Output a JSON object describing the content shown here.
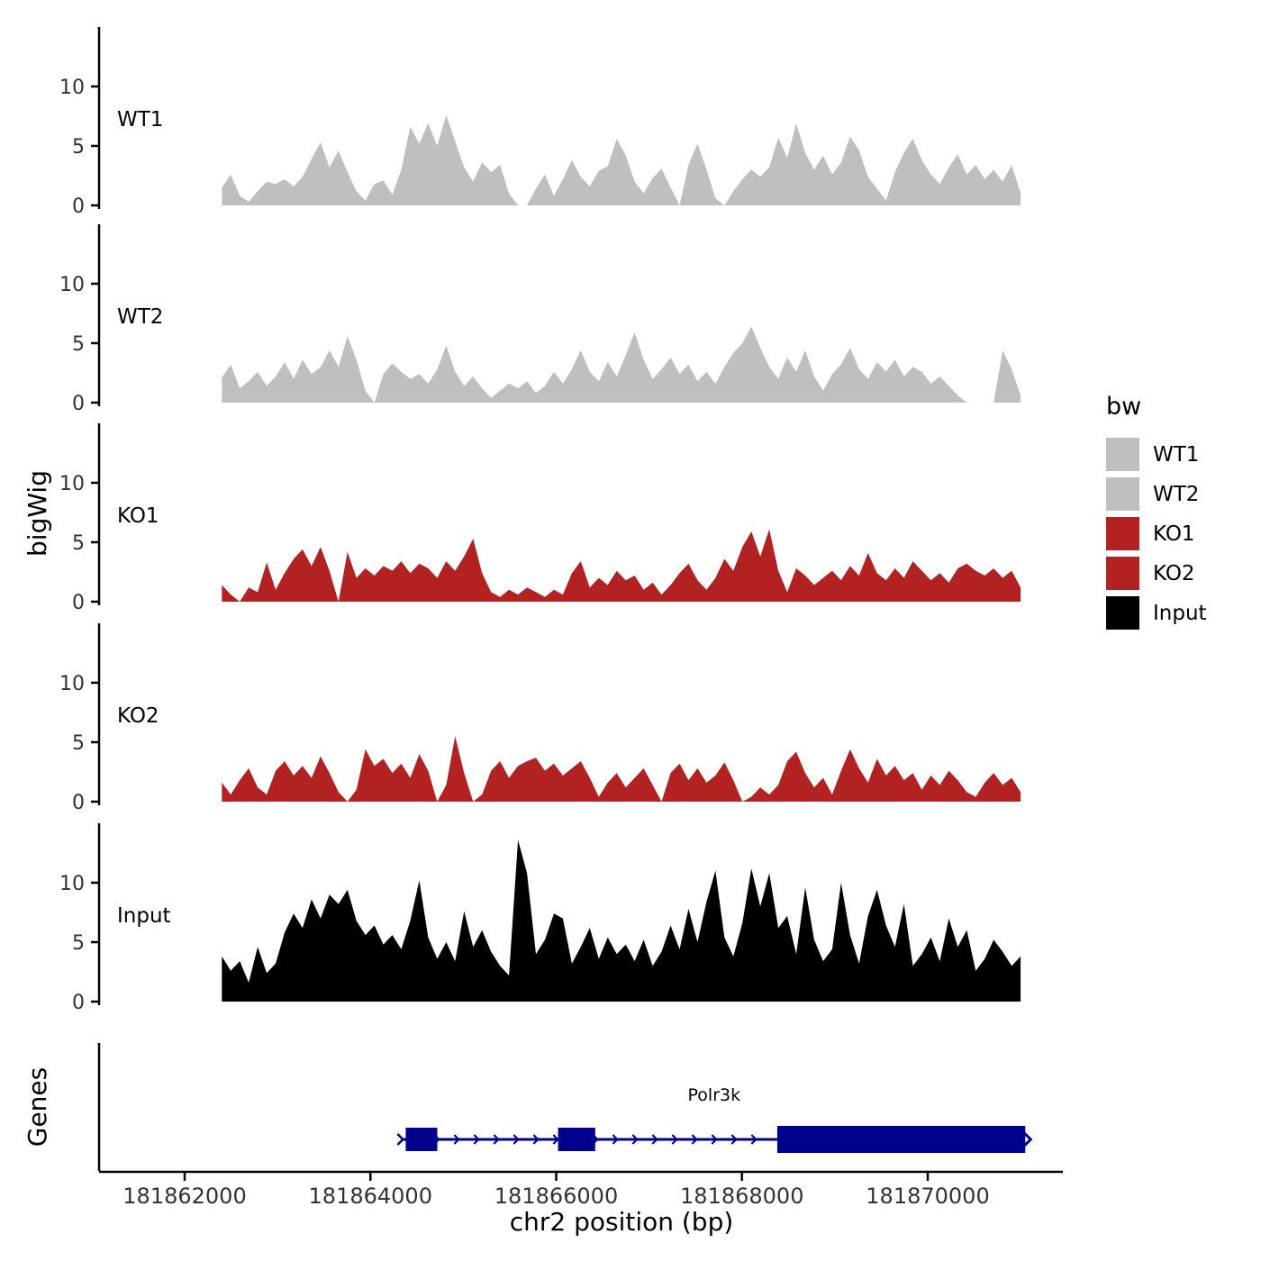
{
  "chart_data": {
    "type": "area",
    "title": "",
    "xlabel": "chr2 position (bp)",
    "ylabel": "bigWig",
    "grid": false,
    "y_ticks": [
      0,
      5,
      10
    ],
    "y_axis_range": [
      0,
      13.8
    ],
    "x_axis_ticks": [
      181862000,
      181864000,
      181866000,
      181868000,
      181870000
    ],
    "x_tick_labels": [
      "181862000",
      "181864000",
      "181866000",
      "181868000",
      "181870000"
    ],
    "x_range_bp": [
      181862400,
      181871000
    ],
    "facets": [
      {
        "name": "WT1",
        "color": "#BFBFBF",
        "values": [
          1.5,
          2.6,
          0.8,
          0.3,
          1.2,
          2.0,
          1.8,
          2.2,
          1.6,
          2.4,
          3.9,
          5.3,
          3.2,
          4.6,
          2.8,
          1.2,
          0.4,
          1.8,
          2.1,
          0.9,
          3.0,
          6.6,
          5.2,
          6.9,
          5.0,
          7.6,
          5.4,
          3.2,
          2.0,
          3.6,
          2.8,
          3.4,
          1.0,
          0.0,
          0.0,
          1.4,
          2.6,
          0.8,
          2.2,
          3.8,
          2.4,
          1.6,
          2.9,
          3.3,
          5.6,
          4.2,
          2.0,
          1.0,
          2.3,
          3.1,
          1.5,
          0.0,
          3.4,
          5.2,
          3.0,
          0.6,
          0.0,
          1.2,
          2.2,
          3.0,
          2.4,
          3.2,
          5.7,
          4.0,
          6.9,
          4.4,
          3.0,
          4.2,
          2.6,
          3.6,
          5.8,
          4.6,
          2.4,
          1.4,
          0.4,
          2.8,
          4.4,
          5.6,
          3.8,
          2.6,
          1.8,
          3.2,
          4.3,
          2.6,
          3.4,
          2.2,
          3.0,
          2.0,
          3.4,
          1.0
        ]
      },
      {
        "name": "WT2",
        "color": "#BFBFBF",
        "values": [
          2.1,
          3.2,
          1.2,
          1.8,
          2.6,
          1.4,
          2.2,
          3.4,
          2.0,
          3.6,
          2.4,
          3.0,
          4.4,
          3.0,
          5.6,
          3.6,
          1.0,
          0.0,
          2.4,
          3.3,
          2.6,
          2.0,
          2.4,
          1.6,
          2.8,
          4.8,
          2.6,
          1.4,
          2.2,
          1.2,
          0.4,
          1.0,
          1.6,
          1.2,
          1.8,
          0.8,
          1.4,
          2.6,
          1.6,
          2.8,
          4.4,
          2.6,
          1.8,
          3.4,
          2.2,
          4.0,
          5.9,
          3.6,
          2.0,
          2.8,
          3.8,
          2.4,
          3.2,
          1.8,
          2.6,
          1.6,
          3.0,
          4.2,
          5.0,
          6.4,
          4.6,
          3.0,
          2.0,
          3.8,
          2.6,
          4.4,
          2.2,
          1.0,
          2.4,
          3.2,
          4.6,
          2.8,
          2.0,
          3.4,
          2.6,
          3.6,
          2.2,
          3.0,
          2.6,
          1.6,
          2.2,
          1.4,
          0.6,
          0.0,
          0.0,
          0.0,
          0.0,
          4.4,
          2.8,
          0.6
        ]
      },
      {
        "name": "KO1",
        "color": "#B22222",
        "values": [
          1.4,
          0.6,
          0.0,
          1.2,
          0.8,
          3.3,
          1.0,
          2.4,
          3.6,
          4.4,
          3.0,
          4.6,
          2.6,
          0.0,
          4.2,
          2.0,
          2.8,
          2.2,
          3.0,
          2.6,
          3.4,
          2.4,
          3.2,
          2.8,
          2.0,
          3.4,
          2.6,
          3.8,
          5.3,
          2.4,
          0.8,
          0.4,
          1.0,
          0.6,
          1.2,
          0.8,
          0.4,
          1.0,
          0.6,
          2.4,
          3.4,
          1.2,
          2.0,
          1.4,
          2.6,
          1.8,
          2.2,
          1.0,
          1.6,
          0.6,
          1.4,
          2.4,
          3.2,
          1.8,
          1.0,
          2.0,
          3.6,
          2.6,
          4.6,
          5.9,
          3.8,
          6.1,
          2.6,
          0.8,
          2.8,
          2.2,
          1.4,
          2.0,
          2.6,
          1.8,
          3.0,
          2.2,
          4.1,
          2.4,
          1.8,
          2.8,
          2.0,
          3.4,
          2.6,
          1.8,
          2.4,
          1.6,
          2.8,
          3.2,
          2.6,
          2.2,
          2.8,
          2.0,
          2.6,
          1.2
        ]
      },
      {
        "name": "KO2",
        "color": "#B22222",
        "values": [
          1.6,
          0.6,
          1.8,
          2.8,
          1.2,
          0.6,
          2.6,
          3.4,
          2.2,
          3.0,
          2.0,
          3.8,
          2.4,
          0.8,
          0.0,
          1.0,
          4.4,
          3.0,
          3.6,
          2.4,
          3.2,
          2.0,
          4.0,
          2.6,
          0.0,
          1.4,
          5.5,
          2.4,
          0.0,
          0.6,
          2.6,
          3.4,
          2.0,
          3.0,
          3.4,
          3.7,
          2.6,
          3.2,
          2.2,
          2.8,
          3.4,
          2.0,
          0.4,
          1.6,
          2.4,
          1.2,
          2.0,
          2.8,
          1.4,
          0.0,
          2.4,
          3.2,
          1.8,
          2.8,
          1.6,
          2.2,
          3.3,
          1.8,
          0.0,
          0.4,
          1.2,
          0.6,
          1.4,
          3.4,
          4.2,
          2.4,
          1.2,
          2.0,
          0.6,
          2.6,
          4.4,
          2.8,
          1.6,
          3.6,
          2.2,
          3.0,
          1.8,
          2.4,
          1.0,
          2.2,
          1.4,
          2.6,
          1.8,
          0.8,
          0.4,
          1.6,
          2.4,
          1.4,
          2.0,
          0.8
        ]
      },
      {
        "name": "Input",
        "color": "#000000",
        "values": [
          3.8,
          2.6,
          3.4,
          1.6,
          4.6,
          2.4,
          3.2,
          5.8,
          7.4,
          6.2,
          8.6,
          7.0,
          9.0,
          8.2,
          9.4,
          6.8,
          5.6,
          6.4,
          4.8,
          5.6,
          4.4,
          6.8,
          10.2,
          5.4,
          3.6,
          5.0,
          3.4,
          7.6,
          4.6,
          6.0,
          4.2,
          3.0,
          2.2,
          13.6,
          10.8,
          4.0,
          5.2,
          7.4,
          7.0,
          3.2,
          4.6,
          6.2,
          3.6,
          5.4,
          4.0,
          4.8,
          3.4,
          5.2,
          3.0,
          4.2,
          6.4,
          4.4,
          7.8,
          5.0,
          8.4,
          11.0,
          5.4,
          3.8,
          6.6,
          11.2,
          8.0,
          10.8,
          6.2,
          7.2,
          4.0,
          9.6,
          5.2,
          3.4,
          4.4,
          10.0,
          5.6,
          3.2,
          7.2,
          9.4,
          6.4,
          4.6,
          8.2,
          3.0,
          4.0,
          5.4,
          3.4,
          7.0,
          4.6,
          6.0,
          2.6,
          3.6,
          5.2,
          4.2,
          3.0,
          3.8
        ]
      }
    ],
    "legend": {
      "title": "bw",
      "position": "right",
      "entries": [
        {
          "label": "WT1",
          "color": "#BFBFBF"
        },
        {
          "label": "WT2",
          "color": "#BFBFBF"
        },
        {
          "label": "KO1",
          "color": "#B22222"
        },
        {
          "label": "KO2",
          "color": "#B22222"
        },
        {
          "label": "Input",
          "color": "#000000"
        }
      ]
    },
    "genes_track": {
      "label": "Genes",
      "gene": {
        "name": "Polr3k",
        "color": "#00008B",
        "strand": "+",
        "line": [
          181864350,
          181868380
        ],
        "exons": [
          [
            181864380,
            181864720
          ],
          [
            181866020,
            181866420
          ]
        ],
        "thick_exon": [
          181868380,
          181871050
        ]
      }
    }
  }
}
